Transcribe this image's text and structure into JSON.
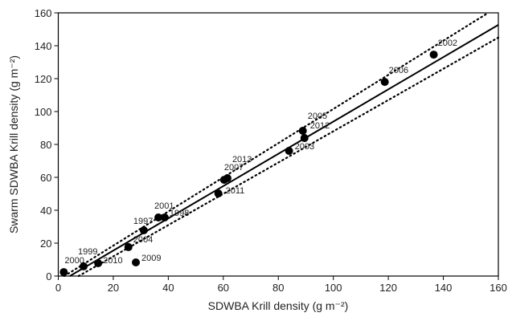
{
  "chart_data": {
    "type": "scatter",
    "x_label": "SDWBA Krill density (g m⁻²)",
    "y_label": "Swarm SDWBA Krill density (g m⁻²)",
    "xlim": [
      0,
      160
    ],
    "ylim": [
      0,
      160
    ],
    "xticks": [
      0,
      20,
      40,
      60,
      80,
      100,
      120,
      140,
      160
    ],
    "yticks": [
      0,
      20,
      40,
      60,
      80,
      100,
      120,
      140,
      160
    ],
    "color": "#000000",
    "series": [
      {
        "x": [
          2,
          9.2,
          14.5,
          28.2,
          25.5,
          31.1,
          36.4,
          38.7,
          58.2,
          60.3,
          61.5,
          83.9,
          89.5,
          88.9,
          118.7,
          136.5
        ],
        "values": [
          2.4,
          5.9,
          7.8,
          8.3,
          17.6,
          27.8,
          35.6,
          35.6,
          50.2,
          58.5,
          59.5,
          76.1,
          83.9,
          88.3,
          118,
          134.6
        ],
        "labels": [
          "2000",
          "1999",
          "2010",
          "2009",
          "2004",
          "1997",
          "2001",
          "1998",
          "2011",
          "2007",
          "2013",
          "2003",
          "2012",
          "2005",
          "2006",
          "2002"
        ]
      }
    ],
    "lines": [
      {
        "style": "solid",
        "x": [
          4.2,
          160
        ],
        "y": [
          0,
          152.7
        ]
      },
      {
        "style": "dotted",
        "x": [
          2.2,
          156.3
        ],
        "y": [
          0,
          160
        ]
      },
      {
        "style": "dotted",
        "x": [
          7.4,
          160
        ],
        "y": [
          0,
          145
        ]
      }
    ]
  }
}
